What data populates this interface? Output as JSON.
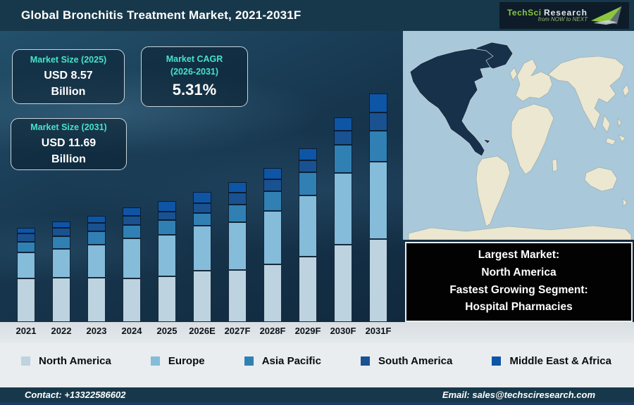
{
  "header": {
    "title": "Global Bronchitis Treatment Market, 2021-2031F",
    "logo": {
      "part1": "TechSci",
      "part2": "Research",
      "tagline": "from NOW to NEXT",
      "accent_color": "#8cc63f"
    }
  },
  "info_boxes": {
    "size_2025": {
      "label": "Market Size (2025)",
      "value": "USD 8.57",
      "unit": "Billion"
    },
    "cagr": {
      "label_line1": "Market CAGR",
      "label_line2": "(2026-2031)",
      "value": "5.31%"
    },
    "size_2031": {
      "label": "Market Size (2031)",
      "value": "USD 11.69",
      "unit": "Billion"
    }
  },
  "chart_data": {
    "type": "bar",
    "stacked": true,
    "title": "Global Bronchitis Treatment Market, 2021-2031F",
    "categories": [
      "2021",
      "2022",
      "2023",
      "2024",
      "2025",
      "2026E",
      "2027F",
      "2028F",
      "2029F",
      "2030F",
      "2031F"
    ],
    "series": [
      {
        "name": "North America",
        "color": "#bdd3df",
        "values": [
          62,
          63,
          63,
          62,
          65,
          73,
          74,
          82,
          93,
          110,
          118
        ]
      },
      {
        "name": "Europe",
        "color": "#85bcda",
        "values": [
          37,
          41,
          47,
          57,
          59,
          64,
          68,
          76,
          87,
          102,
          110
        ]
      },
      {
        "name": "Asia Pacific",
        "color": "#3180b4",
        "values": [
          15,
          18,
          19,
          19,
          21,
          18,
          25,
          28,
          33,
          40,
          44
        ]
      },
      {
        "name": "South America",
        "color": "#1a5190",
        "values": [
          12,
          12,
          12,
          13,
          12,
          14,
          17,
          17,
          17,
          20,
          26
        ]
      },
      {
        "name": "Middle East & Africa",
        "color": "#0e55a6",
        "values": [
          8,
          9,
          10,
          12,
          15,
          16,
          15,
          16,
          17,
          19,
          27
        ]
      }
    ],
    "value_units": "relative stacked bar height in px (y-axis unlabeled in source image)",
    "xlabel": "",
    "ylabel": "",
    "grid": false,
    "legend_position": "bottom",
    "annotations": [
      "Market Size (2025): USD 8.57 Billion",
      "Market CAGR (2026-2031): 5.31%",
      "Market Size (2031): USD 11.69 Billion",
      "Largest Market: North America",
      "Fastest Growing Segment: Hospital Pharmacies"
    ]
  },
  "map": {
    "highlight_region": "North America",
    "highlight_color": "#17314b",
    "ocean_color": "#a9c8da",
    "land_color": "#ece7d0"
  },
  "callout": {
    "line1": "Largest Market:",
    "line2": "North America",
    "line3": "Fastest Growing Segment:",
    "line4": "Hospital Pharmacies"
  },
  "footer": {
    "contact": "Contact: +13322586602",
    "email": "Email: sales@techsciresearch.com"
  }
}
